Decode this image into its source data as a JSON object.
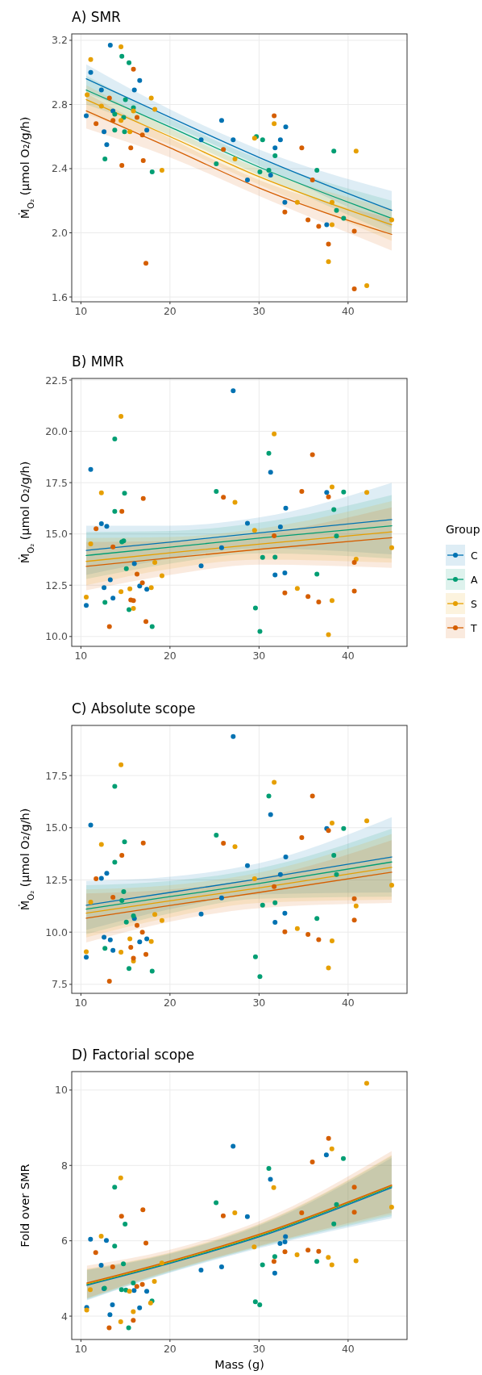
{
  "chart_data": [
    {
      "type": "scatter",
      "title": "A) SMR",
      "ylabel": "Ṁ$_{O₂}$ (µmol O₂/g/h)",
      "xlim": [
        8.97,
        46.62
      ],
      "xticks": [
        10,
        20,
        30,
        40
      ],
      "ylim": [
        1.57,
        3.24
      ],
      "yticks": [
        1.6,
        {
          "value": 2,
          "label": "2.0"
        },
        2.4,
        2.8,
        3.2
      ],
      "grid": true,
      "marker": "circle",
      "series": [
        {
          "color": "#0072b2",
          "x": [
            10.6,
            11.1,
            12.3,
            12.6,
            12.9,
            13.3,
            13.6,
            16.0,
            16.6,
            17.4,
            23.5,
            25.8,
            27.1,
            28.7,
            31.3,
            31.8,
            32.4,
            33.0,
            32.9,
            37.6
          ],
          "values": [
            2.73,
            3.0,
            2.89,
            2.63,
            2.55,
            3.17,
            2.76,
            2.89,
            2.95,
            2.64,
            2.58,
            2.7,
            2.58,
            2.33,
            2.36,
            2.53,
            2.58,
            2.66,
            2.19,
            2.05
          ]
        },
        {
          "color": "#009e73",
          "x": [
            12.7,
            13.8,
            13.8,
            14.6,
            14.8,
            15.0,
            14.9,
            15.4,
            15.9,
            18.0,
            25.2,
            29.7,
            30.4,
            30.1,
            31.1,
            31.8,
            36.5,
            38.4,
            38.7,
            39.5
          ],
          "values": [
            2.46,
            2.74,
            2.64,
            3.1,
            2.72,
            2.83,
            2.63,
            3.06,
            2.78,
            2.38,
            2.43,
            2.6,
            2.58,
            2.38,
            2.39,
            2.48,
            2.39,
            2.51,
            2.14,
            2.09
          ]
        },
        {
          "color": "#e69f00",
          "x": [
            10.7,
            11.1,
            12.3,
            14.5,
            14.5,
            15.5,
            15.9,
            17.9,
            18.3,
            19.1,
            27.3,
            29.5,
            31.7,
            34.3,
            38.2,
            38.2,
            37.8,
            40.9,
            42.1,
            44.9
          ],
          "values": [
            2.86,
            3.08,
            2.79,
            3.16,
            2.7,
            2.63,
            2.76,
            2.84,
            2.77,
            2.39,
            2.46,
            2.59,
            2.68,
            2.19,
            2.19,
            2.05,
            1.82,
            2.51,
            1.67,
            2.08
          ]
        },
        {
          "color": "#d55e00",
          "x": [
            11.7,
            13.2,
            13.6,
            14.6,
            15.6,
            15.9,
            16.3,
            16.9,
            17.0,
            17.3,
            26.0,
            31.7,
            32.9,
            34.8,
            36.0,
            35.5,
            36.7,
            37.8,
            40.7,
            40.7
          ],
          "values": [
            2.68,
            2.84,
            2.7,
            2.42,
            2.53,
            3.02,
            2.72,
            2.61,
            2.45,
            1.81,
            2.52,
            2.73,
            2.13,
            2.53,
            2.33,
            2.08,
            2.04,
            1.93,
            2.01,
            1.65
          ]
        },
        {
          "type": "line",
          "color": "#0072b2",
          "x": [
            10.6,
            20,
            30,
            44.9
          ],
          "marker": "none",
          "values": [
            2.96,
            2.72,
            2.47,
            2.14
          ],
          "lower": [
            2.87,
            2.67,
            2.42,
            2.03
          ],
          "upper": [
            3.05,
            2.77,
            2.52,
            2.26
          ]
        },
        {
          "type": "line",
          "color": "#009e73",
          "x": [
            10.6,
            20,
            30,
            44.9
          ],
          "marker": "none",
          "values": [
            2.89,
            2.66,
            2.41,
            2.09
          ],
          "lower": [
            2.8,
            2.61,
            2.36,
            1.99
          ],
          "upper": [
            2.98,
            2.71,
            2.46,
            2.2
          ]
        },
        {
          "type": "line",
          "color": "#e69f00",
          "x": [
            10.6,
            20,
            30,
            44.9
          ],
          "marker": "none",
          "values": [
            2.83,
            2.6,
            2.35,
            2.05
          ],
          "lower": [
            2.74,
            2.55,
            2.3,
            1.95
          ],
          "upper": [
            2.92,
            2.65,
            2.4,
            2.15
          ]
        },
        {
          "type": "line",
          "color": "#d55e00",
          "x": [
            10.6,
            20,
            30,
            44.9
          ],
          "marker": "none",
          "values": [
            2.76,
            2.53,
            2.28,
            1.99
          ],
          "lower": [
            2.65,
            2.47,
            2.23,
            1.89
          ],
          "upper": [
            2.87,
            2.59,
            2.33,
            2.09
          ]
        }
      ]
    },
    {
      "type": "scatter",
      "title": "B) MMR",
      "ylabel": "Ṁ$_{O₂}$ (µmol O₂/g/h)",
      "xlim": [
        8.97,
        46.62
      ],
      "xticks": [
        10,
        20,
        30,
        40
      ],
      "ylim": [
        9.52,
        22.58
      ],
      "yticks": [
        {
          "value": 10,
          "label": "10.0"
        },
        12.5,
        {
          "value": 15,
          "label": "15.0"
        },
        17.5,
        {
          "value": 20,
          "label": "20.0"
        },
        22.5
      ],
      "grid": true,
      "marker": "circle",
      "legend": "right",
      "legend_title": "Group",
      "series": [
        {
          "name": "C",
          "color": "#0072b2",
          "x": [
            10.6,
            11.1,
            12.3,
            12.9,
            12.6,
            13.3,
            13.6,
            16.0,
            16.6,
            17.4,
            23.5,
            25.8,
            27.1,
            28.7,
            31.3,
            31.8,
            32.4,
            33.0,
            32.9,
            37.6
          ],
          "values": [
            11.52,
            18.14,
            15.5,
            15.37,
            12.38,
            12.77,
            11.87,
            13.55,
            12.46,
            12.3,
            13.44,
            14.33,
            21.98,
            15.52,
            18.01,
            13.0,
            15.34,
            16.26,
            13.1,
            17.02
          ]
        },
        {
          "name": "A",
          "color": "#009e73",
          "x": [
            12.7,
            13.8,
            13.8,
            14.6,
            14.8,
            14.9,
            15.1,
            15.4,
            18.0,
            25.2,
            29.6,
            30.1,
            30.4,
            31.1,
            31.8,
            36.5,
            38.4,
            38.7,
            39.5
          ],
          "values": [
            11.66,
            19.63,
            16.1,
            14.61,
            14.66,
            16.98,
            13.31,
            11.31,
            10.48,
            17.07,
            11.39,
            10.25,
            13.86,
            18.93,
            13.87,
            13.04,
            16.19,
            14.9,
            17.04
          ]
        },
        {
          "name": "S",
          "color": "#e69f00",
          "x": [
            10.6,
            11.1,
            12.3,
            14.5,
            14.5,
            15.5,
            15.9,
            17.9,
            18.3,
            19.1,
            27.3,
            29.5,
            31.7,
            34.3,
            38.2,
            38.2,
            37.8,
            40.9,
            42.1,
            44.9
          ],
          "values": [
            11.92,
            14.52,
            17.0,
            20.73,
            12.19,
            12.32,
            11.37,
            12.38,
            13.61,
            12.96,
            16.54,
            15.17,
            19.88,
            12.34,
            11.75,
            17.29,
            10.09,
            13.77,
            17.02,
            14.33
          ]
        },
        {
          "name": "T",
          "color": "#d55e00",
          "x": [
            11.7,
            13.6,
            14.6,
            13.2,
            15.6,
            15.9,
            16.3,
            16.9,
            17.0,
            17.3,
            26.0,
            31.7,
            32.9,
            34.8,
            36.0,
            35.5,
            36.7,
            37.8,
            40.7,
            40.7
          ],
          "values": [
            15.25,
            14.37,
            16.1,
            10.48,
            11.78,
            11.75,
            13.04,
            12.62,
            16.73,
            10.73,
            16.79,
            14.91,
            12.13,
            17.07,
            18.86,
            11.95,
            11.68,
            16.81,
            13.61,
            12.21
          ]
        },
        {
          "type": "line",
          "color": "#0072b2",
          "x": [
            10.6,
            20,
            30,
            44.9
          ],
          "marker": "none",
          "values": [
            14.2,
            14.6,
            15.05,
            15.7
          ],
          "lower": [
            13.0,
            13.8,
            14.3,
            14.0
          ],
          "upper": [
            15.4,
            15.4,
            15.8,
            17.5
          ]
        },
        {
          "type": "line",
          "color": "#009e73",
          "x": [
            10.6,
            20,
            30,
            44.9
          ],
          "marker": "none",
          "values": [
            13.95,
            14.35,
            14.8,
            15.4
          ],
          "lower": [
            12.8,
            13.55,
            14.05,
            13.8
          ],
          "upper": [
            15.1,
            15.15,
            15.55,
            16.9
          ]
        },
        {
          "type": "line",
          "color": "#e69f00",
          "x": [
            10.6,
            20,
            30,
            44.9
          ],
          "marker": "none",
          "values": [
            13.66,
            14.08,
            14.5,
            15.1
          ],
          "lower": [
            12.5,
            13.3,
            13.75,
            13.6
          ],
          "upper": [
            14.8,
            14.85,
            15.25,
            16.6
          ]
        },
        {
          "type": "line",
          "color": "#d55e00",
          "x": [
            10.6,
            20,
            30,
            44.9
          ],
          "marker": "none",
          "values": [
            13.42,
            13.83,
            14.25,
            14.82
          ],
          "lower": [
            12.25,
            13.0,
            13.5,
            13.35
          ],
          "upper": [
            14.6,
            14.65,
            15.0,
            16.3
          ]
        }
      ]
    },
    {
      "type": "scatter",
      "title": "C) Absolute scope",
      "ylabel": "Ṁ$_{O₂}$ (µmol O₂/g/h)",
      "xlim": [
        8.97,
        46.62
      ],
      "xticks": [
        10,
        20,
        30,
        40
      ],
      "ylim": [
        7.07,
        19.9
      ],
      "yticks": [
        7.5,
        {
          "value": 10,
          "label": "10.0"
        },
        12.5,
        {
          "value": 15,
          "label": "15.0"
        },
        17.5
      ],
      "grid": true,
      "marker": "circle",
      "series": [
        {
          "color": "#0072b2",
          "x": [
            10.6,
            11.1,
            12.3,
            12.9,
            12.6,
            13.3,
            13.6,
            16.0,
            16.6,
            17.4,
            23.5,
            25.8,
            27.1,
            28.7,
            31.3,
            31.8,
            32.4,
            33.0,
            32.9,
            37.6
          ],
          "values": [
            8.8,
            15.13,
            12.58,
            12.82,
            9.76,
            9.63,
            9.13,
            10.65,
            9.53,
            9.68,
            10.87,
            11.64,
            19.37,
            13.19,
            15.63,
            10.47,
            12.76,
            13.6,
            10.91,
            14.96
          ]
        },
        {
          "color": "#009e73",
          "x": [
            12.7,
            13.8,
            13.8,
            14.6,
            14.8,
            14.9,
            15.1,
            15.4,
            15.9,
            18.0,
            25.2,
            29.6,
            30.1,
            30.4,
            31.1,
            31.8,
            36.5,
            38.4,
            38.7,
            39.5
          ],
          "values": [
            9.22,
            16.98,
            13.35,
            11.51,
            11.94,
            14.33,
            10.48,
            8.26,
            10.78,
            8.13,
            14.64,
            8.82,
            7.87,
            11.29,
            16.52,
            11.41,
            10.65,
            13.68,
            12.76,
            14.96
          ]
        },
        {
          "color": "#e69f00",
          "x": [
            10.6,
            11.1,
            12.3,
            14.5,
            14.5,
            15.5,
            15.9,
            17.9,
            18.3,
            19.1,
            27.3,
            29.5,
            31.7,
            34.3,
            38.2,
            38.2,
            37.8,
            40.9,
            42.1,
            44.9
          ],
          "values": [
            9.06,
            11.44,
            14.2,
            18.02,
            9.04,
            9.68,
            8.62,
            9.55,
            10.85,
            10.56,
            14.09,
            12.56,
            17.18,
            10.17,
            9.58,
            15.22,
            8.29,
            11.25,
            15.33,
            12.25
          ]
        },
        {
          "color": "#d55e00",
          "x": [
            11.7,
            13.6,
            14.6,
            13.2,
            15.6,
            15.9,
            16.3,
            16.9,
            17.0,
            17.3,
            26.0,
            31.7,
            32.9,
            34.8,
            36.0,
            35.5,
            36.7,
            37.8,
            40.7,
            40.7
          ],
          "values": [
            12.56,
            11.67,
            13.68,
            7.65,
            9.27,
            8.75,
            10.33,
            10.0,
            14.27,
            8.93,
            14.26,
            12.18,
            10.02,
            14.53,
            16.52,
            9.89,
            9.64,
            14.87,
            11.6,
            10.58
          ]
        },
        {
          "type": "line",
          "color": "#0072b2",
          "x": [
            10.6,
            20,
            30,
            44.9
          ],
          "marker": "none",
          "values": [
            11.29,
            11.9,
            12.55,
            13.6
          ],
          "lower": [
            10.1,
            11.1,
            11.8,
            11.9
          ],
          "upper": [
            12.45,
            12.65,
            13.3,
            15.5
          ]
        },
        {
          "type": "line",
          "color": "#009e73",
          "x": [
            10.6,
            20,
            30,
            44.9
          ],
          "marker": "none",
          "values": [
            11.1,
            11.7,
            12.33,
            13.36
          ],
          "lower": [
            9.9,
            10.9,
            11.6,
            11.7
          ],
          "upper": [
            12.25,
            12.45,
            13.05,
            14.95
          ]
        },
        {
          "type": "line",
          "color": "#e69f00",
          "x": [
            10.6,
            20,
            30,
            44.9
          ],
          "marker": "none",
          "values": [
            10.91,
            11.5,
            12.12,
            13.1
          ],
          "lower": [
            9.75,
            10.7,
            11.4,
            11.55
          ],
          "upper": [
            12.05,
            12.25,
            12.85,
            14.7
          ]
        },
        {
          "type": "line",
          "color": "#d55e00",
          "x": [
            10.6,
            20,
            30,
            44.9
          ],
          "marker": "none",
          "values": [
            10.67,
            11.28,
            11.9,
            12.87
          ],
          "lower": [
            9.5,
            10.5,
            11.15,
            11.4
          ],
          "upper": [
            11.85,
            12.05,
            12.6,
            14.4
          ]
        }
      ]
    },
    {
      "type": "scatter",
      "title": "D) Factorial scope",
      "ylabel": "Fold over SMR",
      "xlabel": "Mass (g)",
      "xlim": [
        8.97,
        46.62
      ],
      "xticks": [
        10,
        20,
        30,
        40
      ],
      "ylim": [
        3.38,
        10.49
      ],
      "yticks": [
        4,
        6,
        8,
        10
      ],
      "grid": true,
      "marker": "circle",
      "series": [
        {
          "color": "#0072b2",
          "x": [
            10.65,
            11.08,
            12.28,
            12.59,
            12.86,
            13.54,
            13.26,
            15.97,
            16.59,
            17.39,
            23.49,
            25.8,
            27.09,
            28.69,
            31.28,
            31.77,
            32.36,
            32.97,
            32.91,
            37.56
          ],
          "values": [
            4.23,
            6.04,
            5.35,
            4.73,
            6.01,
            4.3,
            4.04,
            4.68,
            4.22,
            4.66,
            5.22,
            5.31,
            8.51,
            6.64,
            7.63,
            5.14,
            5.93,
            6.11,
            5.97,
            8.28
          ]
        },
        {
          "color": "#009e73",
          "x": [
            12.65,
            13.79,
            13.79,
            14.56,
            14.77,
            14.96,
            15.05,
            15.36,
            15.88,
            17.98,
            25.18,
            29.59,
            30.08,
            30.39,
            31.1,
            31.77,
            36.49,
            38.4,
            38.7,
            39.47
          ],
          "values": [
            4.74,
            7.42,
            5.86,
            4.7,
            5.39,
            6.44,
            4.69,
            3.69,
            4.88,
            4.4,
            7.01,
            4.38,
            4.3,
            5.36,
            7.92,
            5.58,
            5.45,
            6.45,
            6.96,
            8.18
          ]
        },
        {
          "color": "#e69f00",
          "x": [
            10.65,
            11.05,
            12.28,
            14.47,
            14.47,
            15.45,
            15.88,
            17.82,
            18.25,
            19.09,
            27.28,
            29.46,
            31.65,
            34.27,
            37.78,
            38.18,
            38.18,
            40.89,
            42.09,
            44.89
          ],
          "values": [
            4.16,
            4.7,
            6.12,
            7.67,
            3.85,
            4.66,
            4.12,
            4.35,
            4.92,
            5.41,
            6.74,
            5.84,
            7.41,
            5.63,
            5.56,
            8.44,
            5.36,
            5.47,
            10.18,
            6.89
          ]
        },
        {
          "color": "#d55e00",
          "x": [
            11.66,
            13.57,
            14.56,
            13.17,
            15.88,
            16.28,
            16.9,
            16.96,
            17.3,
            25.98,
            31.68,
            32.91,
            34.79,
            35.99,
            35.5,
            36.7,
            37.81,
            40.7,
            40.7
          ],
          "values": [
            5.69,
            5.31,
            6.65,
            3.69,
            3.89,
            4.79,
            4.84,
            6.82,
            5.94,
            6.66,
            5.45,
            5.71,
            6.74,
            8.09,
            5.75,
            5.72,
            8.72,
            7.42,
            6.76
          ]
        },
        {
          "type": "line",
          "color": "#0072b2",
          "x": [
            10.68,
            20,
            30,
            44.89
          ],
          "marker": "none",
          "values": [
            4.82,
            5.4,
            6.1,
            7.41
          ],
          "lower": [
            4.42,
            5.15,
            5.8,
            6.6
          ],
          "upper": [
            5.22,
            5.65,
            6.4,
            8.2
          ]
        },
        {
          "type": "line",
          "color": "#009e73",
          "x": [
            10.68,
            20,
            30,
            44.89
          ],
          "marker": "none",
          "values": [
            4.84,
            5.42,
            6.13,
            7.44
          ],
          "lower": [
            4.44,
            5.17,
            5.83,
            6.65
          ],
          "upper": [
            5.24,
            5.67,
            6.43,
            8.25
          ]
        },
        {
          "type": "line",
          "color": "#e69f00",
          "x": [
            10.68,
            20,
            30,
            44.89
          ],
          "marker": "none",
          "values": [
            4.86,
            5.44,
            6.15,
            7.46
          ],
          "lower": [
            4.46,
            5.19,
            5.85,
            6.7
          ],
          "upper": [
            5.26,
            5.69,
            6.45,
            8.28
          ]
        },
        {
          "type": "line",
          "color": "#d55e00",
          "x": [
            10.68,
            20,
            30,
            44.89
          ],
          "marker": "none",
          "values": [
            4.88,
            5.46,
            6.17,
            7.48
          ],
          "lower": [
            4.48,
            5.21,
            5.87,
            6.75
          ],
          "upper": [
            5.34,
            5.76,
            6.52,
            8.38
          ]
        }
      ]
    }
  ]
}
